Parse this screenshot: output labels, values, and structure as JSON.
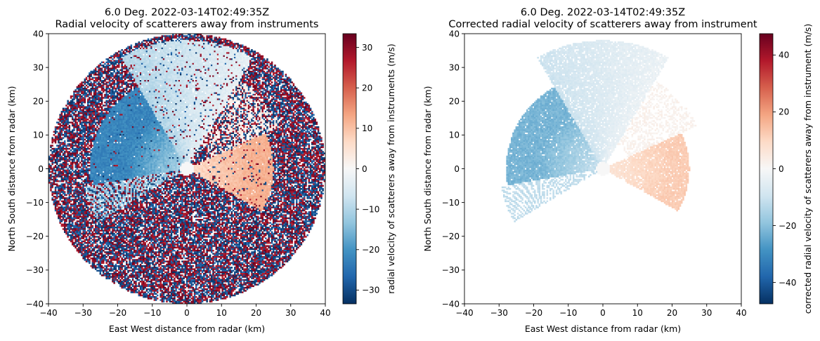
{
  "chart_data": [
    {
      "type": "heatmap",
      "title_line1": "6.0 Deg. 2022-03-14T02:49:35Z",
      "title_line2": "Radial velocity of scatterers away from instruments",
      "xlabel": "East West distance from radar (km)",
      "ylabel": "North South distance from radar (km)",
      "xlim": [
        -40,
        40
      ],
      "ylim": [
        -40,
        40
      ],
      "xticks": [
        -40,
        -30,
        -20,
        -10,
        0,
        10,
        20,
        30,
        40
      ],
      "yticks": [
        -40,
        -30,
        -20,
        -10,
        0,
        10,
        20,
        30,
        40
      ],
      "colorbar": {
        "label": "radial velocity of scatterers away from instruments (m/s)",
        "vmin": -33.4,
        "vmax": 33.4,
        "ticks": [
          -30,
          -20,
          -10,
          0,
          10,
          20,
          30
        ],
        "colormap": "RdBu_r"
      },
      "data_radius_km": 40,
      "noise_outside_echo": true
    },
    {
      "type": "heatmap",
      "title_line1": "6.0 Deg. 2022-03-14T02:49:35Z",
      "title_line2": "Corrected radial velocity of scatterers away from instrument",
      "xlabel": "East West distance from radar (km)",
      "ylabel": "North South distance from radar (km)",
      "xlim": [
        -40,
        40
      ],
      "ylim": [
        -40,
        40
      ],
      "xticks": [
        -40,
        -30,
        -20,
        -10,
        0,
        10,
        20,
        30,
        40
      ],
      "yticks": [
        -40,
        -30,
        -20,
        -10,
        0,
        10,
        20,
        30,
        40
      ],
      "colorbar": {
        "label": "corrected radial velocity of scatterers away from instrument (m/s)",
        "vmin": -47.5,
        "vmax": 47.5,
        "ticks": [
          -40,
          -20,
          0,
          20,
          40
        ],
        "colormap": "RdBu_r"
      },
      "noise_outside_echo": false
    }
  ]
}
